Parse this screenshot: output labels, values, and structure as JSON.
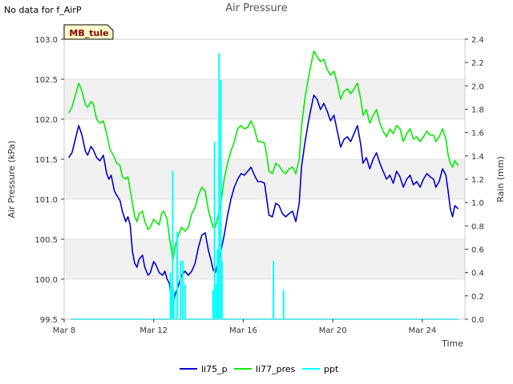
{
  "header": {
    "no_data_text": "No data for f_AirP",
    "site_badge": "MB_tule"
  },
  "colors": {
    "li75_p": "#0000cc",
    "li77_pres": "#00ee00",
    "ppt": "#00ffff",
    "band": "#f0f0f0",
    "badge_bg": "#ffffcc",
    "badge_text": "#8b0000"
  },
  "chart_data": {
    "type": "line",
    "title": "Air Pressure",
    "xlabel": "Time",
    "ylabel": "Air Pressure (kPa)",
    "y2label": "Rain (mm)",
    "xlim": [
      8,
      25.9
    ],
    "ylim": [
      99.5,
      103.0
    ],
    "y2lim": [
      0.0,
      2.4
    ],
    "x_ticks": [
      {
        "value": 8,
        "label": "Mar 8"
      },
      {
        "value": 12,
        "label": "Mar 12"
      },
      {
        "value": 16,
        "label": "Mar 16"
      },
      {
        "value": 20,
        "label": "Mar 20"
      },
      {
        "value": 24,
        "label": "Mar 24"
      }
    ],
    "y_ticks": [
      "99.5",
      "100.0",
      "100.5",
      "101.0",
      "101.5",
      "102.0",
      "102.5",
      "103.0"
    ],
    "y2_ticks": [
      "0.0",
      "0.2",
      "0.4",
      "0.6",
      "0.8",
      "1.0",
      "1.2",
      "1.4",
      "1.6",
      "1.8",
      "2.0",
      "2.2",
      "2.4"
    ],
    "legend": {
      "position": "bottom",
      "entries": [
        "li75_p",
        "li77_pres",
        "ppt"
      ]
    },
    "series": [
      {
        "name": "li75_p",
        "axis": "left",
        "points": [
          [
            8.2,
            101.52
          ],
          [
            8.35,
            101.58
          ],
          [
            8.5,
            101.75
          ],
          [
            8.65,
            101.92
          ],
          [
            8.8,
            101.8
          ],
          [
            8.95,
            101.6
          ],
          [
            9.05,
            101.55
          ],
          [
            9.2,
            101.66
          ],
          [
            9.3,
            101.62
          ],
          [
            9.45,
            101.52
          ],
          [
            9.6,
            101.48
          ],
          [
            9.75,
            101.55
          ],
          [
            9.9,
            101.32
          ],
          [
            10.0,
            101.25
          ],
          [
            10.1,
            101.3
          ],
          [
            10.25,
            101.1
          ],
          [
            10.35,
            101.05
          ],
          [
            10.5,
            100.98
          ],
          [
            10.6,
            100.85
          ],
          [
            10.75,
            100.72
          ],
          [
            10.85,
            100.78
          ],
          [
            10.95,
            100.68
          ],
          [
            11.05,
            100.35
          ],
          [
            11.15,
            100.2
          ],
          [
            11.25,
            100.15
          ],
          [
            11.35,
            100.25
          ],
          [
            11.5,
            100.3
          ],
          [
            11.6,
            100.15
          ],
          [
            11.75,
            100.05
          ],
          [
            11.85,
            100.08
          ],
          [
            12.0,
            100.22
          ],
          [
            12.1,
            100.18
          ],
          [
            12.25,
            100.08
          ],
          [
            12.4,
            100.05
          ],
          [
            12.5,
            100.1
          ],
          [
            12.6,
            100.0
          ],
          [
            12.7,
            99.95
          ],
          [
            12.8,
            99.7
          ],
          [
            12.85,
            99.65
          ],
          [
            12.95,
            99.8
          ],
          [
            13.1,
            99.92
          ],
          [
            13.25,
            100.05
          ],
          [
            13.4,
            100.1
          ],
          [
            13.55,
            100.05
          ],
          [
            13.7,
            100.1
          ],
          [
            13.85,
            100.2
          ],
          [
            14.0,
            100.4
          ],
          [
            14.15,
            100.55
          ],
          [
            14.3,
            100.58
          ],
          [
            14.45,
            100.35
          ],
          [
            14.55,
            100.25
          ],
          [
            14.65,
            100.12
          ],
          [
            14.75,
            100.08
          ],
          [
            14.85,
            100.18
          ],
          [
            15.0,
            100.35
          ],
          [
            15.15,
            100.55
          ],
          [
            15.3,
            100.8
          ],
          [
            15.45,
            101.0
          ],
          [
            15.6,
            101.15
          ],
          [
            15.75,
            101.25
          ],
          [
            15.9,
            101.32
          ],
          [
            16.05,
            101.3
          ],
          [
            16.2,
            101.35
          ],
          [
            16.35,
            101.4
          ],
          [
            16.5,
            101.3
          ],
          [
            16.65,
            101.22
          ],
          [
            16.8,
            101.22
          ],
          [
            16.95,
            101.2
          ],
          [
            17.05,
            101.0
          ],
          [
            17.15,
            100.8
          ],
          [
            17.3,
            100.78
          ],
          [
            17.45,
            100.95
          ],
          [
            17.6,
            100.92
          ],
          [
            17.75,
            100.82
          ],
          [
            17.9,
            100.78
          ],
          [
            18.05,
            100.82
          ],
          [
            18.2,
            100.85
          ],
          [
            18.35,
            100.72
          ],
          [
            18.5,
            100.95
          ],
          [
            18.6,
            101.4
          ],
          [
            18.75,
            101.7
          ],
          [
            18.9,
            101.95
          ],
          [
            19.0,
            102.1
          ],
          [
            19.15,
            102.3
          ],
          [
            19.3,
            102.25
          ],
          [
            19.45,
            102.12
          ],
          [
            19.6,
            102.2
          ],
          [
            19.75,
            102.1
          ],
          [
            19.9,
            101.98
          ],
          [
            20.05,
            102.05
          ],
          [
            20.2,
            101.85
          ],
          [
            20.35,
            101.65
          ],
          [
            20.5,
            101.75
          ],
          [
            20.65,
            101.78
          ],
          [
            20.8,
            101.72
          ],
          [
            20.95,
            101.82
          ],
          [
            21.1,
            101.92
          ],
          [
            21.25,
            101.68
          ],
          [
            21.35,
            101.45
          ],
          [
            21.5,
            101.52
          ],
          [
            21.65,
            101.38
          ],
          [
            21.8,
            101.5
          ],
          [
            21.95,
            101.58
          ],
          [
            22.1,
            101.45
          ],
          [
            22.25,
            101.35
          ],
          [
            22.4,
            101.25
          ],
          [
            22.55,
            101.3
          ],
          [
            22.7,
            101.2
          ],
          [
            22.85,
            101.35
          ],
          [
            23.0,
            101.28
          ],
          [
            23.15,
            101.15
          ],
          [
            23.3,
            101.25
          ],
          [
            23.45,
            101.3
          ],
          [
            23.6,
            101.18
          ],
          [
            23.75,
            101.22
          ],
          [
            23.9,
            101.15
          ],
          [
            24.05,
            101.25
          ],
          [
            24.2,
            101.32
          ],
          [
            24.35,
            101.28
          ],
          [
            24.5,
            101.25
          ],
          [
            24.6,
            101.15
          ],
          [
            24.75,
            101.22
          ],
          [
            24.9,
            101.38
          ],
          [
            25.05,
            101.3
          ],
          [
            25.15,
            101.1
          ],
          [
            25.25,
            100.88
          ],
          [
            25.35,
            100.78
          ],
          [
            25.45,
            100.92
          ],
          [
            25.6,
            100.88
          ]
        ]
      },
      {
        "name": "li77_pres",
        "axis": "left",
        "points": [
          [
            8.2,
            102.08
          ],
          [
            8.35,
            102.15
          ],
          [
            8.5,
            102.3
          ],
          [
            8.65,
            102.45
          ],
          [
            8.8,
            102.35
          ],
          [
            8.95,
            102.18
          ],
          [
            9.05,
            102.15
          ],
          [
            9.2,
            102.22
          ],
          [
            9.3,
            102.2
          ],
          [
            9.45,
            102.0
          ],
          [
            9.6,
            101.95
          ],
          [
            9.75,
            101.98
          ],
          [
            9.9,
            101.82
          ],
          [
            10.05,
            101.62
          ],
          [
            10.2,
            101.55
          ],
          [
            10.35,
            101.45
          ],
          [
            10.5,
            101.42
          ],
          [
            10.6,
            101.28
          ],
          [
            10.75,
            101.25
          ],
          [
            10.85,
            101.28
          ],
          [
            10.95,
            101.12
          ],
          [
            11.05,
            100.95
          ],
          [
            11.15,
            100.78
          ],
          [
            11.25,
            100.72
          ],
          [
            11.35,
            100.82
          ],
          [
            11.5,
            100.85
          ],
          [
            11.6,
            100.72
          ],
          [
            11.75,
            100.62
          ],
          [
            11.85,
            100.65
          ],
          [
            12.0,
            100.75
          ],
          [
            12.1,
            100.72
          ],
          [
            12.25,
            100.68
          ],
          [
            12.35,
            100.82
          ],
          [
            12.45,
            100.85
          ],
          [
            12.6,
            100.75
          ],
          [
            12.7,
            100.52
          ],
          [
            12.8,
            100.35
          ],
          [
            12.85,
            100.22
          ],
          [
            12.95,
            100.4
          ],
          [
            13.1,
            100.55
          ],
          [
            13.25,
            100.65
          ],
          [
            13.4,
            100.6
          ],
          [
            13.55,
            100.65
          ],
          [
            13.7,
            100.82
          ],
          [
            13.85,
            100.9
          ],
          [
            14.0,
            101.05
          ],
          [
            14.15,
            101.15
          ],
          [
            14.3,
            101.1
          ],
          [
            14.45,
            100.85
          ],
          [
            14.55,
            100.75
          ],
          [
            14.65,
            100.65
          ],
          [
            14.75,
            100.65
          ],
          [
            14.85,
            100.75
          ],
          [
            15.0,
            100.95
          ],
          [
            15.15,
            101.25
          ],
          [
            15.3,
            101.45
          ],
          [
            15.45,
            101.6
          ],
          [
            15.6,
            101.72
          ],
          [
            15.75,
            101.88
          ],
          [
            15.9,
            101.92
          ],
          [
            16.05,
            101.88
          ],
          [
            16.2,
            101.9
          ],
          [
            16.35,
            101.98
          ],
          [
            16.5,
            101.88
          ],
          [
            16.65,
            101.72
          ],
          [
            16.8,
            101.72
          ],
          [
            16.95,
            101.7
          ],
          [
            17.05,
            101.55
          ],
          [
            17.15,
            101.35
          ],
          [
            17.3,
            101.32
          ],
          [
            17.45,
            101.45
          ],
          [
            17.6,
            101.42
          ],
          [
            17.75,
            101.35
          ],
          [
            17.9,
            101.32
          ],
          [
            18.05,
            101.38
          ],
          [
            18.2,
            101.4
          ],
          [
            18.35,
            101.32
          ],
          [
            18.5,
            101.5
          ],
          [
            18.6,
            101.9
          ],
          [
            18.75,
            102.25
          ],
          [
            18.9,
            102.5
          ],
          [
            19.0,
            102.65
          ],
          [
            19.15,
            102.85
          ],
          [
            19.3,
            102.78
          ],
          [
            19.45,
            102.72
          ],
          [
            19.6,
            102.75
          ],
          [
            19.75,
            102.62
          ],
          [
            19.9,
            102.55
          ],
          [
            20.05,
            102.6
          ],
          [
            20.2,
            102.45
          ],
          [
            20.35,
            102.25
          ],
          [
            20.5,
            102.35
          ],
          [
            20.65,
            102.38
          ],
          [
            20.8,
            102.32
          ],
          [
            20.95,
            102.38
          ],
          [
            21.1,
            102.45
          ],
          [
            21.25,
            102.25
          ],
          [
            21.35,
            102.05
          ],
          [
            21.5,
            102.12
          ],
          [
            21.65,
            101.95
          ],
          [
            21.8,
            102.05
          ],
          [
            21.95,
            102.12
          ],
          [
            22.1,
            101.95
          ],
          [
            22.25,
            101.85
          ],
          [
            22.4,
            101.78
          ],
          [
            22.55,
            101.88
          ],
          [
            22.7,
            101.82
          ],
          [
            22.85,
            101.92
          ],
          [
            23.0,
            101.88
          ],
          [
            23.15,
            101.72
          ],
          [
            23.3,
            101.82
          ],
          [
            23.45,
            101.88
          ],
          [
            23.6,
            101.75
          ],
          [
            23.75,
            101.78
          ],
          [
            23.9,
            101.72
          ],
          [
            24.05,
            101.78
          ],
          [
            24.2,
            101.85
          ],
          [
            24.35,
            101.8
          ],
          [
            24.5,
            101.8
          ],
          [
            24.6,
            101.72
          ],
          [
            24.75,
            101.78
          ],
          [
            24.9,
            101.88
          ],
          [
            25.05,
            101.75
          ],
          [
            25.15,
            101.55
          ],
          [
            25.25,
            101.45
          ],
          [
            25.35,
            101.4
          ],
          [
            25.45,
            101.48
          ],
          [
            25.6,
            101.42
          ]
        ]
      },
      {
        "name": "ppt",
        "axis": "right",
        "baseline": 0.0,
        "x_range": [
          8.3,
          25.6
        ],
        "spikes": [
          [
            12.75,
            0.4
          ],
          [
            12.8,
            0.3
          ],
          [
            12.85,
            1.27
          ],
          [
            12.9,
            0.25
          ],
          [
            13.05,
            0.75
          ],
          [
            13.2,
            0.5
          ],
          [
            13.3,
            0.5
          ],
          [
            13.4,
            0.3
          ],
          [
            14.65,
            0.25
          ],
          [
            14.72,
            1.52
          ],
          [
            14.8,
            0.3
          ],
          [
            14.85,
            0.6
          ],
          [
            14.92,
            2.28
          ],
          [
            15.0,
            2.05
          ],
          [
            15.05,
            0.5
          ],
          [
            17.35,
            0.5
          ],
          [
            17.8,
            0.25
          ]
        ]
      }
    ]
  }
}
